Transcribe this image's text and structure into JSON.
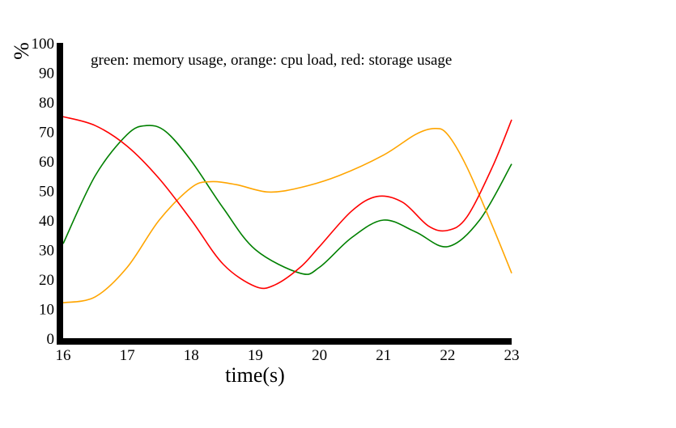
{
  "chart_data": {
    "type": "line",
    "title": "",
    "annotation": "green: memory usage, orange: cpu load, red: storage usage",
    "xlabel": "time(s)",
    "ylabel": "%",
    "xlim": [
      16,
      23
    ],
    "ylim": [
      0,
      100
    ],
    "x_ticks": [
      "16",
      "17",
      "18",
      "19",
      "20",
      "21",
      "22",
      "23"
    ],
    "y_ticks": [
      "0",
      "10",
      "20",
      "30",
      "40",
      "50",
      "60",
      "70",
      "80",
      "90",
      "100"
    ],
    "grid": false,
    "series": [
      {
        "color": "#008000",
        "points": [
          [
            16,
            32
          ],
          [
            16.5,
            55
          ],
          [
            17,
            69
          ],
          [
            17.3,
            72
          ],
          [
            17.6,
            70
          ],
          [
            18,
            60
          ],
          [
            18.5,
            44
          ],
          [
            19,
            30
          ],
          [
            19.7,
            22
          ],
          [
            20,
            24
          ],
          [
            20.5,
            34
          ],
          [
            21,
            40
          ],
          [
            21.5,
            36
          ],
          [
            22,
            31
          ],
          [
            22.5,
            40
          ],
          [
            23,
            59
          ]
        ]
      },
      {
        "color": "#FFA500",
        "points": [
          [
            16,
            12
          ],
          [
            16.5,
            14
          ],
          [
            17,
            24
          ],
          [
            17.5,
            40
          ],
          [
            18,
            51
          ],
          [
            18.3,
            53
          ],
          [
            18.7,
            52
          ],
          [
            19.2,
            49.5
          ],
          [
            19.7,
            51
          ],
          [
            20.3,
            55
          ],
          [
            21,
            62
          ],
          [
            21.5,
            69
          ],
          [
            21.8,
            71
          ],
          [
            22,
            69
          ],
          [
            22.3,
            58
          ],
          [
            22.7,
            38
          ],
          [
            23,
            22
          ]
        ]
      },
      {
        "color": "#FF0000",
        "points": [
          [
            16,
            75
          ],
          [
            16.5,
            72
          ],
          [
            17,
            65
          ],
          [
            17.5,
            54
          ],
          [
            18,
            40
          ],
          [
            18.5,
            25
          ],
          [
            19,
            17.5
          ],
          [
            19.3,
            18
          ],
          [
            19.7,
            24
          ],
          [
            20,
            31
          ],
          [
            20.5,
            43
          ],
          [
            20.9,
            48
          ],
          [
            21.3,
            46
          ],
          [
            21.7,
            38
          ],
          [
            22,
            36.5
          ],
          [
            22.3,
            41
          ],
          [
            22.7,
            58
          ],
          [
            23,
            74
          ]
        ]
      }
    ]
  }
}
